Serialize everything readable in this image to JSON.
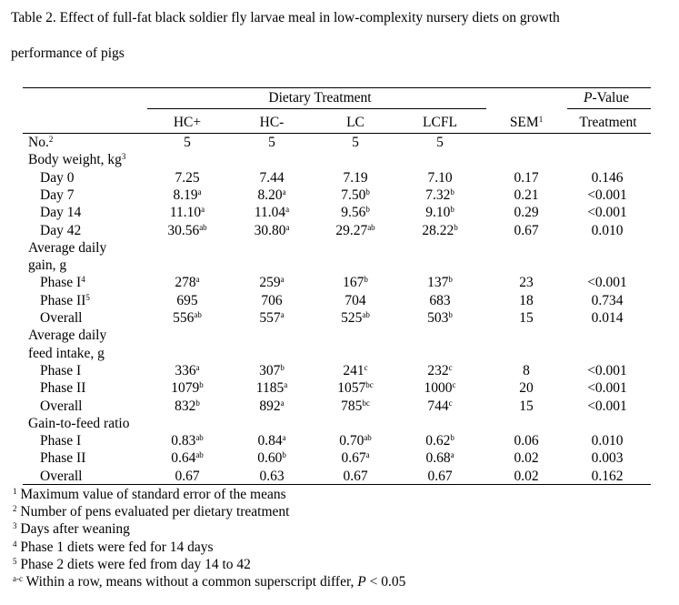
{
  "caption": {
    "line1": "Table 2. Effect of full-fat black soldier fly larvae meal in low-complexity nursery diets on growth",
    "line2": "performance of pigs"
  },
  "header": {
    "group_label": "Dietary Treatment",
    "pvalue_p": "P",
    "pvalue_rest": "-Value",
    "columns": [
      "HC+",
      "HC-",
      "LC",
      "LCFL"
    ],
    "sem": "SEM",
    "sem_sup": "1",
    "treatment": "Treatment"
  },
  "rows": [
    {
      "label": "No.",
      "sup": "2",
      "indent": false,
      "cells": [
        {
          "v": "5",
          "s": ""
        },
        {
          "v": "5",
          "s": ""
        },
        {
          "v": "5",
          "s": ""
        },
        {
          "v": "5",
          "s": ""
        }
      ],
      "sem": "",
      "p": ""
    },
    {
      "label": "Body weight, kg",
      "sup": "3",
      "indent": false,
      "cells": [],
      "sem": "",
      "p": ""
    },
    {
      "label": "Day 0",
      "sup": "",
      "indent": true,
      "cells": [
        {
          "v": "7.25",
          "s": ""
        },
        {
          "v": "7.44",
          "s": ""
        },
        {
          "v": "7.19",
          "s": ""
        },
        {
          "v": "7.10",
          "s": ""
        }
      ],
      "sem": "0.17",
      "p": "0.146"
    },
    {
      "label": "Day 7",
      "sup": "",
      "indent": true,
      "cells": [
        {
          "v": "8.19",
          "s": "a"
        },
        {
          "v": "8.20",
          "s": "a"
        },
        {
          "v": "7.50",
          "s": "b"
        },
        {
          "v": "7.32",
          "s": "b"
        }
      ],
      "sem": "0.21",
      "p": "<0.001"
    },
    {
      "label": "Day 14",
      "sup": "",
      "indent": true,
      "cells": [
        {
          "v": "11.10",
          "s": "a"
        },
        {
          "v": "11.04",
          "s": "a"
        },
        {
          "v": "9.56",
          "s": "b"
        },
        {
          "v": "9.10",
          "s": "b"
        }
      ],
      "sem": "0.29",
      "p": "<0.001"
    },
    {
      "label": "Day 42",
      "sup": "",
      "indent": true,
      "cells": [
        {
          "v": "30.56",
          "s": "ab"
        },
        {
          "v": "30.80",
          "s": "a"
        },
        {
          "v": "29.27",
          "s": "ab"
        },
        {
          "v": "28.22",
          "s": "b"
        }
      ],
      "sem": "0.67",
      "p": "0.010"
    },
    {
      "label": "Average daily",
      "sup": "",
      "indent": false,
      "cells": [],
      "sem": "",
      "p": ""
    },
    {
      "label": "gain, g",
      "sup": "",
      "indent": false,
      "cells": [],
      "sem": "",
      "p": ""
    },
    {
      "label": "Phase I",
      "sup": "4",
      "indent": true,
      "cells": [
        {
          "v": "278",
          "s": "a"
        },
        {
          "v": "259",
          "s": "a"
        },
        {
          "v": "167",
          "s": "b"
        },
        {
          "v": "137",
          "s": "b"
        }
      ],
      "sem": "23",
      "p": "<0.001"
    },
    {
      "label": "Phase II",
      "sup": "5",
      "indent": true,
      "cells": [
        {
          "v": "695",
          "s": ""
        },
        {
          "v": "706",
          "s": ""
        },
        {
          "v": "704",
          "s": ""
        },
        {
          "v": "683",
          "s": ""
        }
      ],
      "sem": "18",
      "p": "0.734"
    },
    {
      "label": "Overall",
      "sup": "",
      "indent": true,
      "cells": [
        {
          "v": "556",
          "s": "ab"
        },
        {
          "v": "557",
          "s": "a"
        },
        {
          "v": "525",
          "s": "ab"
        },
        {
          "v": "503",
          "s": "b"
        }
      ],
      "sem": "15",
      "p": "0.014"
    },
    {
      "label": "Average daily",
      "sup": "",
      "indent": false,
      "cells": [],
      "sem": "",
      "p": ""
    },
    {
      "label": "feed intake, g",
      "sup": "",
      "indent": false,
      "cells": [],
      "sem": "",
      "p": ""
    },
    {
      "label": "Phase I",
      "sup": "",
      "indent": true,
      "cells": [
        {
          "v": "336",
          "s": "a"
        },
        {
          "v": "307",
          "s": "b"
        },
        {
          "v": "241",
          "s": "c"
        },
        {
          "v": "232",
          "s": "c"
        }
      ],
      "sem": "8",
      "p": "<0.001"
    },
    {
      "label": "Phase II",
      "sup": "",
      "indent": true,
      "cells": [
        {
          "v": "1079",
          "s": "b"
        },
        {
          "v": "1185",
          "s": "a"
        },
        {
          "v": "1057",
          "s": "bc"
        },
        {
          "v": "1000",
          "s": "c"
        }
      ],
      "sem": "20",
      "p": "<0.001"
    },
    {
      "label": "Overall",
      "sup": "",
      "indent": true,
      "cells": [
        {
          "v": "832",
          "s": "b"
        },
        {
          "v": "892",
          "s": "a"
        },
        {
          "v": "785",
          "s": "bc"
        },
        {
          "v": "744",
          "s": "c"
        }
      ],
      "sem": "15",
      "p": "<0.001"
    },
    {
      "label": "Gain-to-feed ratio",
      "sup": "",
      "indent": false,
      "cells": [],
      "sem": "",
      "p": ""
    },
    {
      "label": "Phase I",
      "sup": "",
      "indent": true,
      "cells": [
        {
          "v": "0.83",
          "s": "ab"
        },
        {
          "v": "0.84",
          "s": "a"
        },
        {
          "v": "0.70",
          "s": "ab"
        },
        {
          "v": "0.62",
          "s": "b"
        }
      ],
      "sem": "0.06",
      "p": "0.010"
    },
    {
      "label": "Phase II",
      "sup": "",
      "indent": true,
      "cells": [
        {
          "v": "0.64",
          "s": "ab"
        },
        {
          "v": "0.60",
          "s": "b"
        },
        {
          "v": "0.67",
          "s": "a"
        },
        {
          "v": "0.68",
          "s": "a"
        }
      ],
      "sem": "0.02",
      "p": "0.003"
    },
    {
      "label": "Overall",
      "sup": "",
      "indent": true,
      "cells": [
        {
          "v": "0.67",
          "s": ""
        },
        {
          "v": "0.63",
          "s": ""
        },
        {
          "v": "0.67",
          "s": ""
        },
        {
          "v": "0.67",
          "s": ""
        }
      ],
      "sem": "0.02",
      "p": "0.162"
    }
  ],
  "footnotes": [
    {
      "mark": "1",
      "text": "Maximum value of standard error of the means"
    },
    {
      "mark": "2",
      "text": "Number of pens evaluated per dietary treatment"
    },
    {
      "mark": "3",
      "text": "Days after weaning"
    },
    {
      "mark": "4",
      "text": "Phase 1 diets were fed for 14 days"
    },
    {
      "mark": "5",
      "text": "Phase 2 diets were fed from day 14 to 42"
    }
  ],
  "last_footnote": {
    "mark": "a-c",
    "text": "Within a row, means without a common superscript differ, ",
    "p": "P",
    "tail": " < 0.05"
  }
}
